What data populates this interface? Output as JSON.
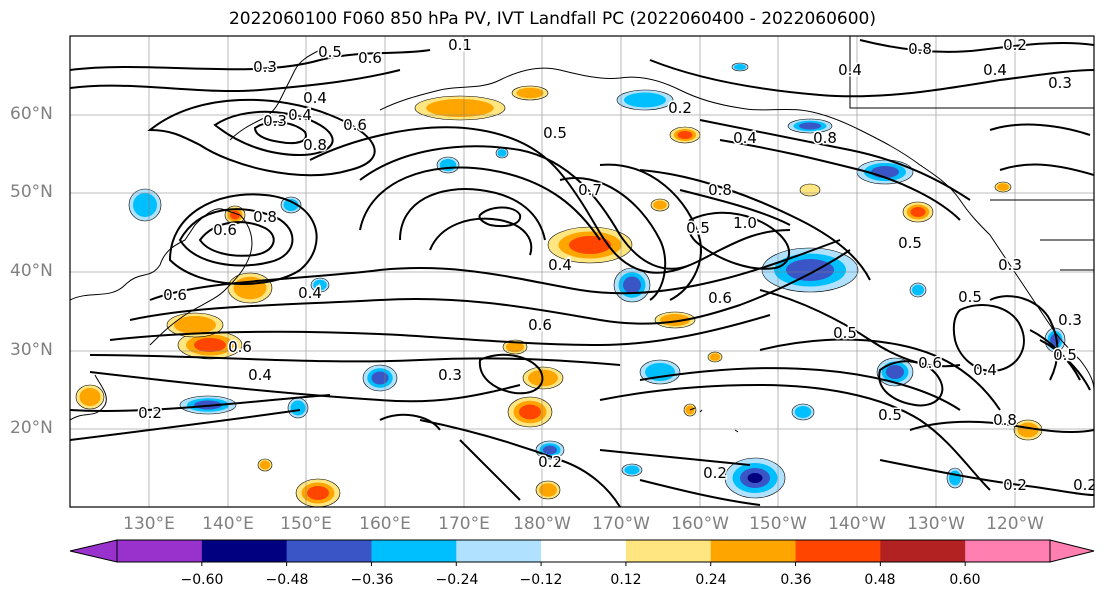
{
  "title": "2022060100 F060 850 hPa PV, IVT Landfall PC (2022060400 - 2022060600)",
  "map": {
    "projection": "PlateCarree",
    "extent": {
      "lon_min": 120,
      "lon_max": 250,
      "lat_min": 10,
      "lat_max": 70
    },
    "gridlines": true,
    "lat_labels": [
      "60°N",
      "50°N",
      "40°N",
      "30°N",
      "20°N"
    ],
    "lon_labels": [
      "130°E",
      "140°E",
      "150°E",
      "160°E",
      "170°E",
      "180°W",
      "170°W",
      "160°W",
      "150°W",
      "140°W",
      "130°W",
      "120°W"
    ]
  },
  "contour_labels": [
    "0.5",
    "0.6",
    "0.3",
    "0.1",
    "0.8",
    "0.6",
    "0.4",
    "0.3",
    "0.4",
    "0.8",
    "0.6",
    "0.2",
    "0.8",
    "0.2",
    "0.4",
    "0.3",
    "0.4",
    "0.8",
    "0.5",
    "0.7",
    "0.8",
    "1.0",
    "0.5",
    "0.4",
    "0.5",
    "0.4",
    "0.6",
    "0.6",
    "0.5",
    "0.3",
    "0.5",
    "0.4",
    "0.6",
    "0.4",
    "0.2",
    "0.3",
    "0.6",
    "0.5",
    "0.4",
    "0.8",
    "0.2",
    "0.2",
    "0.2",
    "0.5",
    "0.3",
    "0.2",
    "0.6"
  ],
  "colorbar": {
    "ticks": [
      "−0.60",
      "−0.48",
      "−0.36",
      "−0.24",
      "−0.12",
      "0.12",
      "0.24",
      "0.36",
      "0.48",
      "0.60"
    ],
    "colors": [
      "#9932cc",
      "#000080",
      "#3a56c6",
      "#00bfff",
      "#b0e2ff",
      "#ffffff",
      "#ffe680",
      "#ffa500",
      "#ff4500",
      "#b22222",
      "#ff80b0"
    ],
    "extend": "both"
  },
  "shading_colors": {
    "neg_strong": "#000080",
    "neg_mid": "#3a56c6",
    "neg_weak": "#00bfff",
    "neg_faint": "#b0e2ff",
    "pos_faint": "#ffe680",
    "pos_weak": "#ffa500",
    "pos_mid": "#ff4500",
    "pos_strong": "#b22222"
  }
}
